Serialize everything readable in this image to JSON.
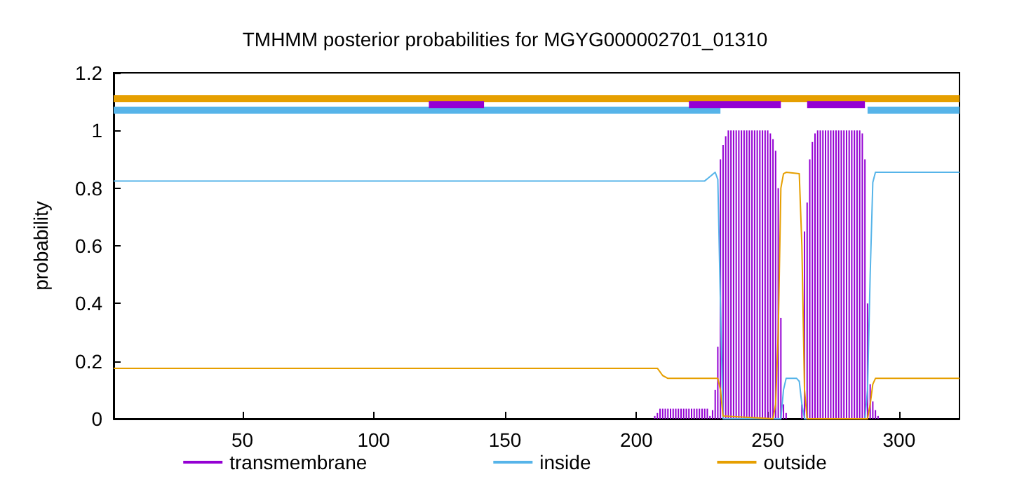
{
  "chart_data": {
    "type": "line",
    "title": "TMHMM posterior probabilities for MGYG000002701_01310",
    "ylabel": "probability",
    "xlim": [
      1,
      323
    ],
    "ylim": [
      0,
      1.2
    ],
    "xticks": [
      50,
      100,
      150,
      200,
      250,
      300
    ],
    "yticks": [
      0,
      0.2,
      0.4,
      0.6,
      0.8,
      1,
      1.2
    ],
    "grid": false,
    "legend": "bottom",
    "marker": "none",
    "line_style": "solid",
    "series": [
      {
        "name": "transmembrane",
        "type": "bar",
        "color": "#9400d3",
        "x": [
          207,
          208,
          209,
          210,
          211,
          212,
          213,
          214,
          215,
          216,
          217,
          218,
          219,
          220,
          221,
          222,
          223,
          224,
          225,
          226,
          227,
          228,
          229,
          230,
          231,
          232,
          233,
          234,
          235,
          236,
          237,
          238,
          239,
          240,
          241,
          242,
          243,
          244,
          245,
          246,
          247,
          248,
          249,
          250,
          251,
          252,
          253,
          254,
          255,
          256,
          257,
          263,
          264,
          265,
          266,
          267,
          268,
          269,
          270,
          271,
          272,
          273,
          274,
          275,
          276,
          277,
          278,
          279,
          280,
          281,
          282,
          283,
          284,
          285,
          286,
          287,
          288,
          289,
          290,
          291,
          292
        ],
        "values": [
          0.01,
          0.02,
          0.035,
          0.035,
          0.035,
          0.035,
          0.035,
          0.035,
          0.035,
          0.035,
          0.035,
          0.035,
          0.035,
          0.035,
          0.035,
          0.035,
          0.035,
          0.035,
          0.035,
          0.035,
          0.035,
          0.01,
          0.03,
          0.1,
          0.25,
          0.9,
          0.95,
          0.98,
          1,
          1,
          1,
          1,
          1,
          1,
          1,
          1,
          1,
          1,
          1,
          1,
          1,
          1,
          1,
          1,
          0.99,
          0.97,
          0.93,
          0.8,
          0.35,
          0.05,
          0.02,
          0.05,
          0.65,
          0.75,
          0.9,
          0.96,
          0.99,
          1,
          1,
          1,
          1,
          1,
          1,
          1,
          1,
          1,
          1,
          1,
          1,
          1,
          1,
          1,
          1,
          1,
          0.99,
          0.9,
          0.4,
          0.12,
          0.06,
          0.03,
          0.01
        ]
      },
      {
        "name": "inside",
        "color": "#56b4e9",
        "x": [
          1,
          226,
          228,
          230,
          231,
          232,
          233,
          255,
          256,
          257,
          261,
          262,
          263,
          264,
          287,
          288,
          289,
          290,
          291,
          323
        ],
        "values": [
          0.825,
          0.825,
          0.84,
          0.855,
          0.83,
          0.4,
          0,
          0,
          0.1,
          0.14,
          0.14,
          0.13,
          0.05,
          0,
          0,
          0.1,
          0.5,
          0.82,
          0.855,
          0.855
        ]
      },
      {
        "name": "outside",
        "color": "#e69f00",
        "x": [
          1,
          208,
          210,
          212,
          231,
          232,
          233,
          252,
          253,
          254,
          255,
          256,
          257,
          262,
          263,
          264,
          265,
          288,
          289,
          290,
          291,
          323
        ],
        "values": [
          0.175,
          0.175,
          0.15,
          0.14,
          0.14,
          0.1,
          0.01,
          0,
          0.05,
          0.3,
          0.8,
          0.85,
          0.855,
          0.85,
          0.6,
          0.1,
          0,
          0,
          0.05,
          0.12,
          0.14,
          0.14
        ]
      },
      {
        "color": "#e69f00",
        "x": [
          1,
          323
        ],
        "values": [
          1.11,
          1.11
        ]
      },
      {
        "color": "#56b4e9",
        "x": [
          1,
          232
        ],
        "values": [
          1.07,
          1.07
        ]
      },
      {
        "color": "#56b4e9",
        "x": [
          288,
          323
        ],
        "values": [
          1.07,
          1.07
        ]
      },
      {
        "color": "#9400d3",
        "x": [
          121,
          142
        ],
        "values": [
          1.09,
          1.09
        ]
      },
      {
        "color": "#9400d3",
        "x": [
          220,
          255
        ],
        "values": [
          1.09,
          1.09
        ]
      },
      {
        "color": "#9400d3",
        "x": [
          265,
          287
        ],
        "values": [
          1.09,
          1.09
        ]
      }
    ]
  }
}
